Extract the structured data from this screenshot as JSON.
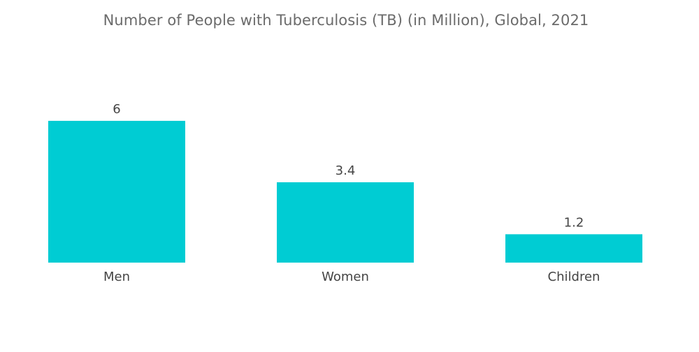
{
  "chart_data": {
    "type": "bar",
    "title": "Number of People with Tuberculosis (TB) (in Million), Global, 2021",
    "categories": [
      "Men",
      "Women",
      "Children"
    ],
    "values": [
      6,
      3.4,
      1.2
    ],
    "data_labels": [
      "6",
      "3.4",
      "1.2"
    ],
    "xlabel": "",
    "ylabel": "",
    "ylim": [
      0,
      6
    ],
    "grid": false,
    "legend": "none",
    "colors": {
      "bar": "#00ccd3",
      "text": "#444444",
      "title": "#6b6b6b"
    }
  }
}
